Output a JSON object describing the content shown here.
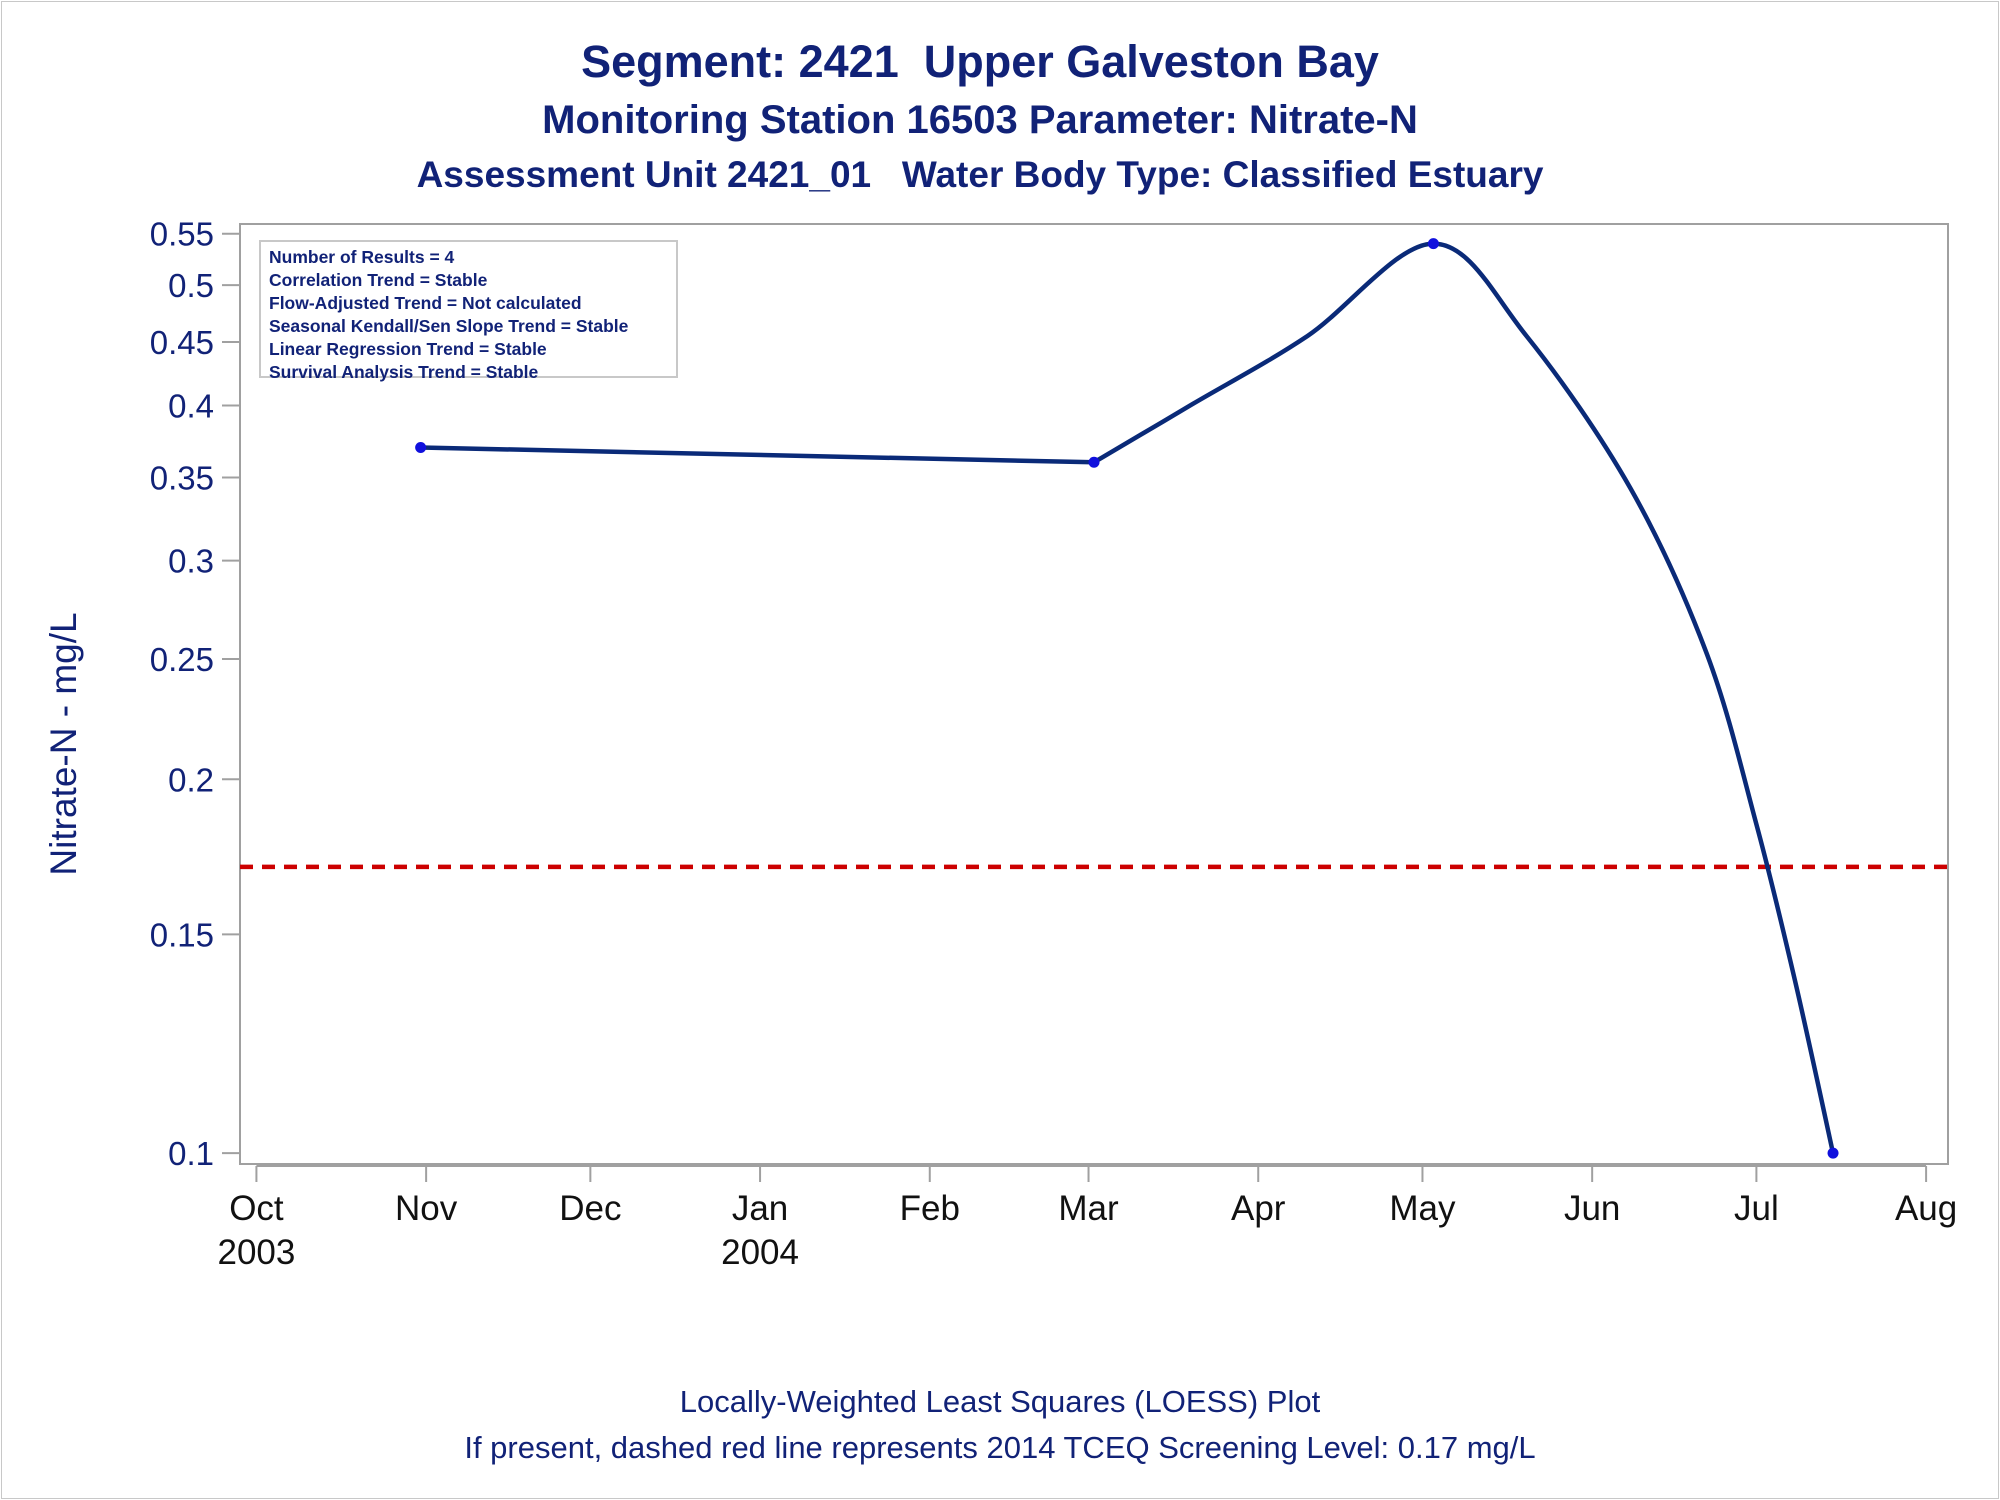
{
  "titles": {
    "line1": "Segment: 2421  Upper Galveston Bay",
    "line2": "Monitoring Station 16503 Parameter: Nitrate-N",
    "line3": "Assessment Unit 2421_01   Water Body Type: Classified Estuary"
  },
  "footnotes": {
    "line1": "Locally-Weighted Least Squares (LOESS) Plot",
    "line2": "If present, dashed red line represents 2014 TCEQ Screening Level: 0.17 mg/L"
  },
  "infobox": [
    "Number of Results = 4",
    "Correlation Trend = Stable",
    "Flow-Adjusted Trend = Not calculated",
    "Seasonal Kendall/Sen Slope Trend = Stable",
    "Linear Regression Trend = Stable",
    "Survival Analysis Trend = Stable"
  ],
  "colors": {
    "text": "#112277",
    "line": "#0a2a78",
    "marker": "#1010dd",
    "screening": "#cc0000",
    "frame": "#a0a0a0"
  },
  "chart_data": {
    "type": "line",
    "ylabel": "Nitrate-N - mg/L",
    "xlabel": "",
    "y_scale": "log",
    "ylim": [
      0.098,
      0.56
    ],
    "xlim": [
      "2003-09-28",
      "2004-08-05"
    ],
    "y_ticks": [
      {
        "value": 0.1,
        "label": "0.1"
      },
      {
        "value": 0.15,
        "label": "0.15"
      },
      {
        "value": 0.2,
        "label": "0.2"
      },
      {
        "value": 0.25,
        "label": "0.25"
      },
      {
        "value": 0.3,
        "label": "0.3"
      },
      {
        "value": 0.35,
        "label": "0.35"
      },
      {
        "value": 0.4,
        "label": "0.4"
      },
      {
        "value": 0.45,
        "label": "0.45"
      },
      {
        "value": 0.5,
        "label": "0.5"
      },
      {
        "value": 0.55,
        "label": "0.55"
      }
    ],
    "x_ticks": [
      {
        "date": "2003-10-01",
        "label": "Oct",
        "year": "2003"
      },
      {
        "date": "2003-11-01",
        "label": "Nov",
        "year": ""
      },
      {
        "date": "2003-12-01",
        "label": "Dec",
        "year": ""
      },
      {
        "date": "2004-01-01",
        "label": "Jan",
        "year": "2004"
      },
      {
        "date": "2004-02-01",
        "label": "Feb",
        "year": ""
      },
      {
        "date": "2004-03-01",
        "label": "Mar",
        "year": ""
      },
      {
        "date": "2004-04-01",
        "label": "Apr",
        "year": ""
      },
      {
        "date": "2004-05-01",
        "label": "May",
        "year": ""
      },
      {
        "date": "2004-06-01",
        "label": "Jun",
        "year": ""
      },
      {
        "date": "2004-07-01",
        "label": "Jul",
        "year": ""
      },
      {
        "date": "2004-08-01",
        "label": "Aug",
        "year": ""
      }
    ],
    "points": [
      {
        "date": "2003-10-31",
        "value": 0.37
      },
      {
        "date": "2004-03-02",
        "value": 0.36
      },
      {
        "date": "2004-05-03",
        "value": 0.54
      },
      {
        "date": "2004-07-15",
        "value": 0.1
      }
    ],
    "loess_curve": [
      {
        "date": "2003-10-31",
        "value": 0.37
      },
      {
        "date": "2004-03-02",
        "value": 0.36
      },
      {
        "date": "2004-03-20",
        "value": 0.401
      },
      {
        "date": "2004-04-10",
        "value": 0.455
      },
      {
        "date": "2004-05-03",
        "value": 0.54
      },
      {
        "date": "2004-05-20",
        "value": 0.455
      },
      {
        "date": "2004-06-08",
        "value": 0.343
      },
      {
        "date": "2004-06-22",
        "value": 0.252
      },
      {
        "date": "2004-07-01",
        "value": 0.184
      },
      {
        "date": "2004-07-08",
        "value": 0.138
      },
      {
        "date": "2004-07-15",
        "value": 0.1
      }
    ],
    "screening_level": 0.17
  }
}
